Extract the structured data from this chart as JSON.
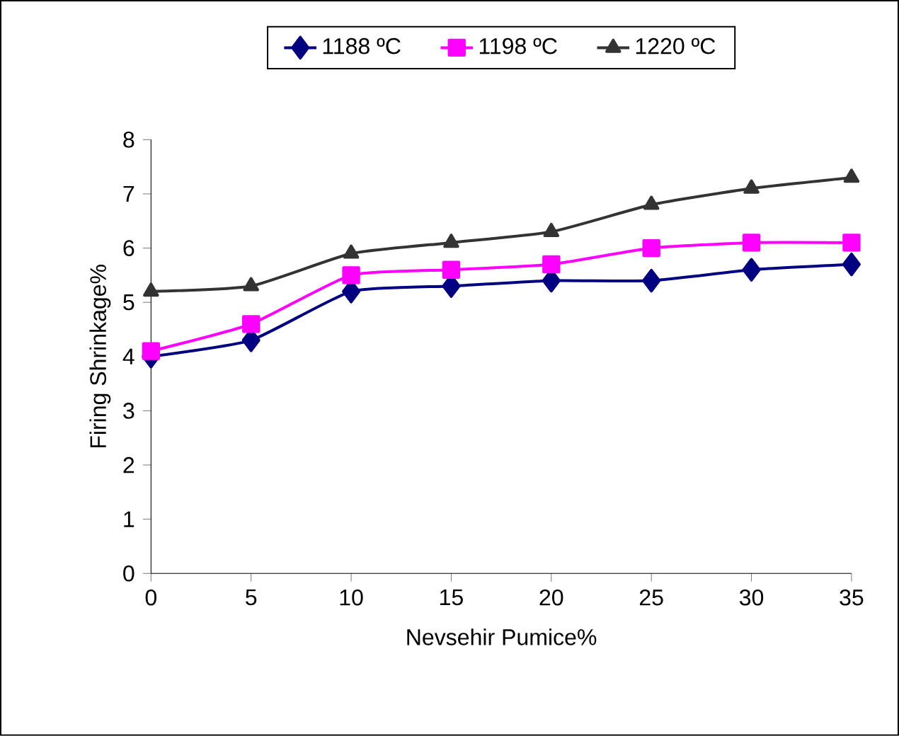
{
  "chart_data": {
    "type": "line",
    "xlabel": "Nevsehir Pumice%",
    "ylabel": "Firing Shrinkage%",
    "x": [
      0,
      5,
      10,
      15,
      20,
      25,
      30,
      35
    ],
    "series": [
      {
        "name": "1188 ºC",
        "color": "#000080",
        "marker": "diamond",
        "values": [
          4.0,
          4.3,
          5.2,
          5.3,
          5.4,
          5.4,
          5.6,
          5.7
        ]
      },
      {
        "name": "1198 ºC",
        "color": "#ff00ff",
        "marker": "square",
        "values": [
          4.1,
          4.6,
          5.5,
          5.6,
          5.7,
          6.0,
          6.1,
          6.1
        ]
      },
      {
        "name": "1220 ºC",
        "color": "#333333",
        "marker": "triangle",
        "values": [
          5.2,
          5.3,
          5.9,
          6.1,
          6.3,
          6.8,
          7.1,
          7.3
        ]
      }
    ],
    "xlim": [
      0,
      35
    ],
    "xticks": [
      0,
      5,
      10,
      15,
      20,
      25,
      30,
      35
    ],
    "ylim": [
      0,
      8
    ],
    "yticks": [
      0,
      1,
      2,
      3,
      4,
      5,
      6,
      7,
      8
    ],
    "grid": false,
    "legend": "top",
    "line_style": "solid"
  }
}
